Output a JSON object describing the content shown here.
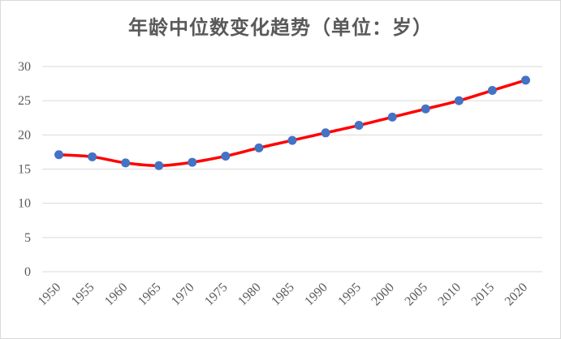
{
  "chart_data": {
    "type": "line",
    "title": "年龄中位数变化趋势（单位：岁）",
    "x": [
      "1950",
      "1955",
      "1960",
      "1965",
      "1970",
      "1975",
      "1980",
      "1985",
      "1990",
      "1995",
      "2000",
      "2005",
      "2010",
      "2015",
      "2020"
    ],
    "series": [
      {
        "values": [
          17.1,
          16.8,
          15.9,
          15.5,
          16.0,
          16.9,
          18.1,
          19.2,
          20.3,
          21.4,
          22.6,
          23.8,
          25.0,
          26.5,
          28.0
        ]
      }
    ],
    "ylim": [
      0,
      30
    ],
    "yticks": [
      0,
      5,
      10,
      15,
      20,
      25,
      30
    ],
    "grid": true,
    "line_color": "#ff0000",
    "marker_color": "#4472c4",
    "smooth": true
  }
}
